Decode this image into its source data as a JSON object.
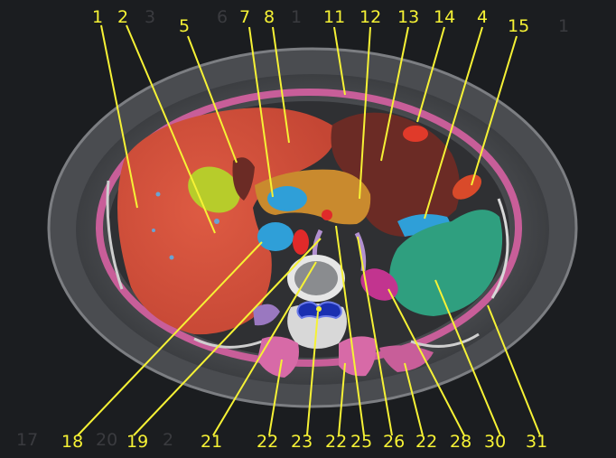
{
  "colors": {
    "background": "#1b1d20",
    "label_text": "#f6f235",
    "leader_line": "#f6f235",
    "liver": "#d5543e",
    "gallbladder": "#b7cc2b",
    "stomach": "#6b2b25",
    "pancreas": "#c98a2e",
    "vessels_portal": "#2f9fd8",
    "spleen": "#2f9f7f",
    "kidney": "#c2348f",
    "aorta": "#e02a2a",
    "muscle_pink": "#d76aa7",
    "spinal_canal": "#1a2fb0"
  },
  "labels_top": [
    "1",
    "2",
    "5",
    "7",
    "8",
    "11",
    "12",
    "13",
    "14",
    "4",
    "15"
  ],
  "labels_bottom": [
    "18",
    "19",
    "21",
    "22",
    "23",
    "22",
    "25",
    "26",
    "22",
    "28",
    "30",
    "31"
  ],
  "ghost_labels": {
    "top_a": "3",
    "top_b": "6",
    "top_c": "1",
    "top_d": "1",
    "bottom_a": "17",
    "bottom_b": "20",
    "bottom_c": "2"
  }
}
